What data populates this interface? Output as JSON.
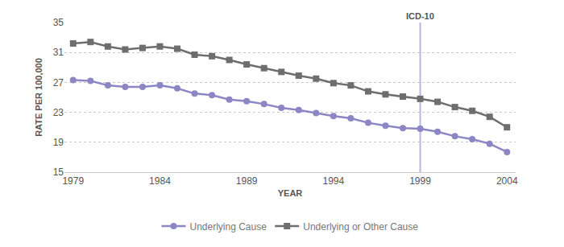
{
  "chart_data": {
    "type": "line",
    "x": [
      1979,
      1980,
      1981,
      1982,
      1983,
      1984,
      1985,
      1986,
      1987,
      1988,
      1989,
      1990,
      1991,
      1992,
      1993,
      1994,
      1995,
      1996,
      1997,
      1998,
      1999,
      2000,
      2001,
      2002,
      2003,
      2004
    ],
    "series": [
      {
        "name": "Underlying Cause",
        "color": "#8c87c4",
        "marker": "circle",
        "values": [
          27.3,
          27.2,
          26.6,
          26.4,
          26.4,
          26.6,
          26.2,
          25.5,
          25.3,
          24.7,
          24.5,
          24.1,
          23.6,
          23.3,
          22.9,
          22.5,
          22.2,
          21.6,
          21.2,
          20.9,
          20.8,
          20.4,
          19.8,
          19.4,
          18.8,
          17.7
        ]
      },
      {
        "name": "Underlying or Other Cause",
        "color": "#6e6e6e",
        "marker": "square",
        "values": [
          32.2,
          32.4,
          31.8,
          31.4,
          31.6,
          31.8,
          31.5,
          30.7,
          30.5,
          30.0,
          29.4,
          28.9,
          28.4,
          27.9,
          27.5,
          26.9,
          26.6,
          25.8,
          25.4,
          25.1,
          24.8,
          24.4,
          23.7,
          23.2,
          22.4,
          21.0
        ]
      }
    ],
    "x_label": "YEAR",
    "y_label": "RATE PER 100,000",
    "xlim": [
      1978.5,
      2004.5
    ],
    "xticks": [
      1979,
      1984,
      1989,
      1994,
      1999,
      2004
    ],
    "ylim": [
      15,
      35
    ],
    "yticks": [
      15,
      19,
      23,
      27,
      31,
      35
    ],
    "grid": true,
    "legend": "bottom",
    "annotations": [
      {
        "text": "ICD-10",
        "x": 1999,
        "color": "#b9b5dc"
      }
    ]
  }
}
